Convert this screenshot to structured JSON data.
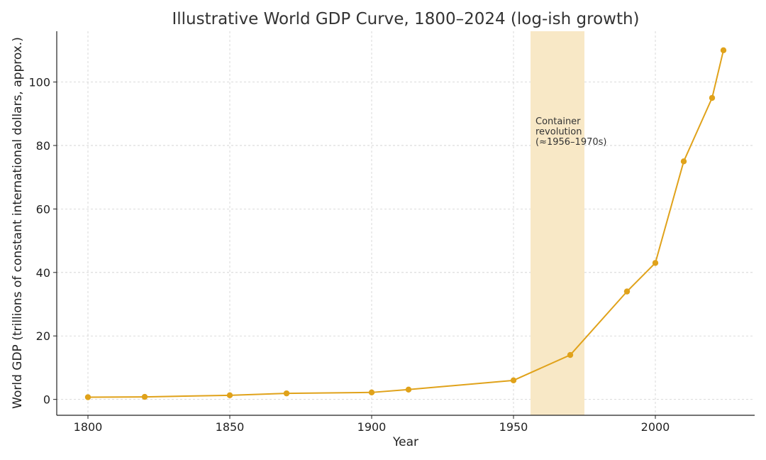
{
  "chart_data": {
    "type": "line",
    "title": "Illustrative World GDP Curve, 1800–2024 (log-ish growth)",
    "xlabel": "Year",
    "ylabel": "World GDP (trillions of constant international dollars, approx.)",
    "xlim": [
      1789,
      2035
    ],
    "ylim": [
      -5,
      116
    ],
    "xticks": [
      1800,
      1850,
      1900,
      1950,
      2000
    ],
    "yticks": [
      0,
      20,
      40,
      60,
      80,
      100
    ],
    "grid": true,
    "line_color": "#e0a21a",
    "band_color": "#f8e8c6",
    "series": [
      {
        "x": [
          1800,
          1820,
          1850,
          1870,
          1900,
          1913,
          1950,
          1970,
          1990,
          2000,
          2010,
          2020,
          2024
        ],
        "y": [
          0.7,
          0.8,
          1.3,
          1.9,
          2.2,
          3.1,
          6.0,
          14.0,
          34.0,
          43.0,
          75.0,
          95.0,
          110.0
        ]
      }
    ],
    "shaded_region": {
      "x_range": [
        1956,
        1975
      ],
      "label_lines": [
        "Container",
        "revolution",
        "(≈1956–1970s)"
      ]
    }
  }
}
